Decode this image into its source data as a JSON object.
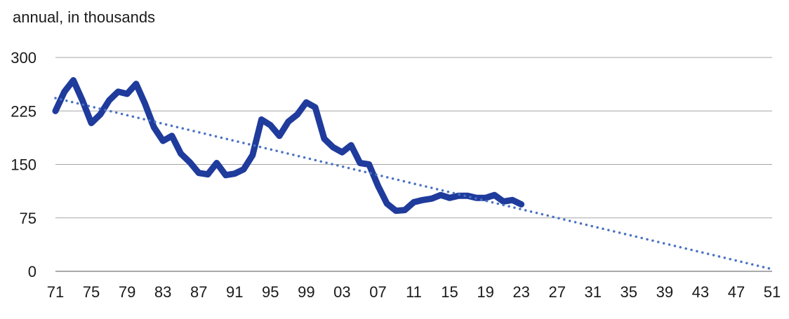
{
  "chart_data": {
    "type": "line",
    "title": "",
    "subtitle": "annual, in thousands",
    "xlabel": "",
    "ylabel": "",
    "ylim": [
      0,
      300
    ],
    "yticks": [
      0,
      75,
      150,
      225,
      300
    ],
    "xlim": [
      1971,
      2051
    ],
    "xtick_years": [
      1971,
      1975,
      1979,
      1983,
      1987,
      1991,
      1995,
      1999,
      2003,
      2007,
      2011,
      2015,
      2019,
      2023,
      2027,
      2031,
      2035,
      2039,
      2043,
      2047,
      2051
    ],
    "xtick_labels": [
      "71",
      "75",
      "79",
      "83",
      "87",
      "91",
      "95",
      "99",
      "03",
      "07",
      "11",
      "15",
      "19",
      "23",
      "27",
      "31",
      "35",
      "39",
      "43",
      "47",
      "51"
    ],
    "grid": "horizontal",
    "series": [
      {
        "style": "solid",
        "color": "#1f3b9c",
        "x": [
          1971,
          1972,
          1973,
          1974,
          1975,
          1976,
          1977,
          1978,
          1979,
          1980,
          1981,
          1982,
          1983,
          1984,
          1985,
          1986,
          1987,
          1988,
          1989,
          1990,
          1991,
          1992,
          1993,
          1994,
          1995,
          1996,
          1997,
          1998,
          1999,
          2000,
          2001,
          2002,
          2003,
          2004,
          2005,
          2006,
          2007,
          2008,
          2009,
          2010,
          2011,
          2012,
          2013,
          2014,
          2015,
          2016,
          2017,
          2018,
          2019,
          2020,
          2021,
          2022,
          2023
        ],
        "y": [
          225,
          252,
          268,
          240,
          208,
          220,
          240,
          252,
          249,
          263,
          235,
          202,
          183,
          190,
          165,
          153,
          138,
          136,
          152,
          135,
          137,
          143,
          163,
          213,
          205,
          190,
          210,
          220,
          237,
          230,
          186,
          174,
          167,
          177,
          152,
          150,
          120,
          95,
          85,
          86,
          97,
          100,
          102,
          107,
          103,
          106,
          106,
          103,
          103,
          107,
          98,
          100,
          94
        ]
      },
      {
        "style": "dotted",
        "color": "#4a72c4",
        "x": [
          1971,
          2051
        ],
        "y": [
          243,
          3
        ]
      }
    ]
  }
}
